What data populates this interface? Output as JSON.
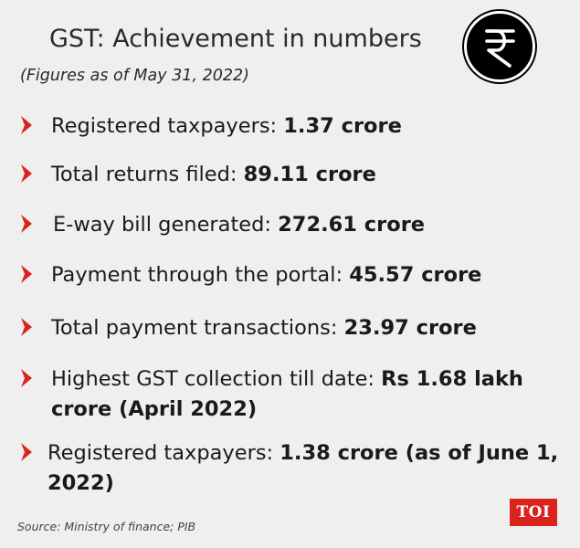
{
  "header": {
    "title": "GST: Achievement in numbers",
    "subtitle": "(Figures as of May 31, 2022)",
    "logo_icon": "rupee-icon"
  },
  "items": [
    {
      "label": "Registered taxpayers: ",
      "value": "1.37 crore"
    },
    {
      "label": "Total returns filed: ",
      "value": "89.11 crore"
    },
    {
      "label": "E-way bill generated: ",
      "value": "272.61 crore"
    },
    {
      "label": "Payment through the portal: ",
      "value": "45.57 crore"
    },
    {
      "label": "Total payment transactions: ",
      "value": "23.97 crore"
    },
    {
      "label": "Highest GST collection till date: ",
      "value": "Rs 1.68 lakh crore (April 2022)"
    },
    {
      "label": "Registered taxpayers: ",
      "value": "1.38 crore (as of June 1, 2022)"
    }
  ],
  "footer": {
    "source": "Source: Ministry of finance; PIB",
    "brand": "TOI"
  },
  "colors": {
    "background": "#efefef",
    "bullet": "#d9231d",
    "brand": "#d9231d",
    "text": "#1a1a1a"
  }
}
